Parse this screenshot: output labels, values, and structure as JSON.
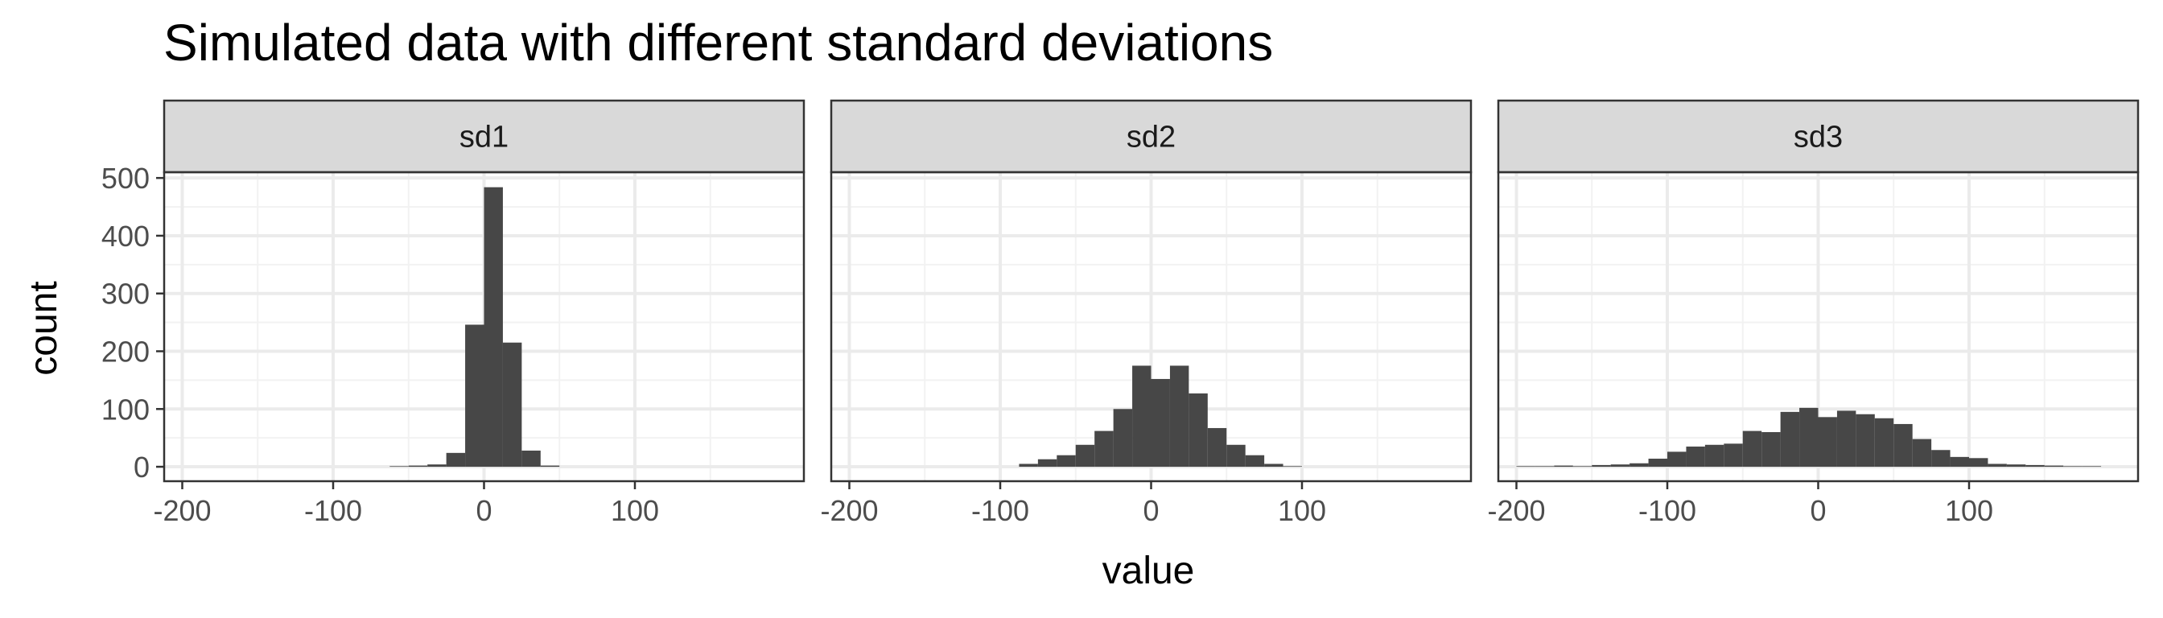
{
  "chart_data": {
    "type": "bar",
    "subtype": "faceted-histogram",
    "title": "Simulated data with different standard deviations",
    "xlabel": "value",
    "ylabel": "count",
    "xlim": [
      -212,
      212
    ],
    "ylim": [
      -25,
      510
    ],
    "x_ticks": [
      -200,
      -100,
      0,
      100
    ],
    "x_tick_labels": [
      "-200",
      "-100",
      "0",
      "100"
    ],
    "y_ticks": [
      0,
      100,
      200,
      300,
      400,
      500
    ],
    "y_tick_labels": [
      "0",
      "100",
      "200",
      "300",
      "400",
      "500"
    ],
    "bin_width": 12.5,
    "grid": true,
    "theme": "bw",
    "bar_color": "#474747",
    "facets": [
      {
        "name": "sd1",
        "bins": [
          {
            "x": -56.25,
            "count": 1
          },
          {
            "x": -43.75,
            "count": 2
          },
          {
            "x": -31.25,
            "count": 4
          },
          {
            "x": -18.75,
            "count": 24
          },
          {
            "x": -6.25,
            "count": 246
          },
          {
            "x": 6.25,
            "count": 484
          },
          {
            "x": 18.75,
            "count": 215
          },
          {
            "x": 31.25,
            "count": 28
          },
          {
            "x": 43.75,
            "count": 2
          }
        ]
      },
      {
        "name": "sd2",
        "bins": [
          {
            "x": -81.25,
            "count": 5
          },
          {
            "x": -68.75,
            "count": 13
          },
          {
            "x": -56.25,
            "count": 20
          },
          {
            "x": -43.75,
            "count": 38
          },
          {
            "x": -31.25,
            "count": 62
          },
          {
            "x": -18.75,
            "count": 100
          },
          {
            "x": -6.25,
            "count": 175
          },
          {
            "x": 6.25,
            "count": 152
          },
          {
            "x": 18.75,
            "count": 175
          },
          {
            "x": 31.25,
            "count": 127
          },
          {
            "x": 43.75,
            "count": 67
          },
          {
            "x": 56.25,
            "count": 38
          },
          {
            "x": 68.75,
            "count": 20
          },
          {
            "x": 81.25,
            "count": 5
          },
          {
            "x": 93.75,
            "count": 1
          }
        ]
      },
      {
        "name": "sd3",
        "bins": [
          {
            "x": -193.75,
            "count": 1
          },
          {
            "x": -181.25,
            "count": 1
          },
          {
            "x": -168.75,
            "count": 2
          },
          {
            "x": -156.25,
            "count": 1
          },
          {
            "x": -143.75,
            "count": 3
          },
          {
            "x": -131.25,
            "count": 4
          },
          {
            "x": -118.75,
            "count": 6
          },
          {
            "x": -106.25,
            "count": 14
          },
          {
            "x": -93.75,
            "count": 26
          },
          {
            "x": -81.25,
            "count": 35
          },
          {
            "x": -68.75,
            "count": 38
          },
          {
            "x": -56.25,
            "count": 40
          },
          {
            "x": -43.75,
            "count": 62
          },
          {
            "x": -31.25,
            "count": 60
          },
          {
            "x": -18.75,
            "count": 95
          },
          {
            "x": -6.25,
            "count": 102
          },
          {
            "x": 6.25,
            "count": 86
          },
          {
            "x": 18.75,
            "count": 97
          },
          {
            "x": 31.25,
            "count": 91
          },
          {
            "x": 43.75,
            "count": 84
          },
          {
            "x": 56.25,
            "count": 74
          },
          {
            "x": 68.75,
            "count": 48
          },
          {
            "x": 81.25,
            "count": 29
          },
          {
            "x": 93.75,
            "count": 17
          },
          {
            "x": 106.25,
            "count": 15
          },
          {
            "x": 118.75,
            "count": 5
          },
          {
            "x": 131.25,
            "count": 4
          },
          {
            "x": 143.75,
            "count": 3
          },
          {
            "x": 156.25,
            "count": 2
          },
          {
            "x": 168.75,
            "count": 1
          },
          {
            "x": 181.25,
            "count": 1
          }
        ]
      }
    ]
  }
}
